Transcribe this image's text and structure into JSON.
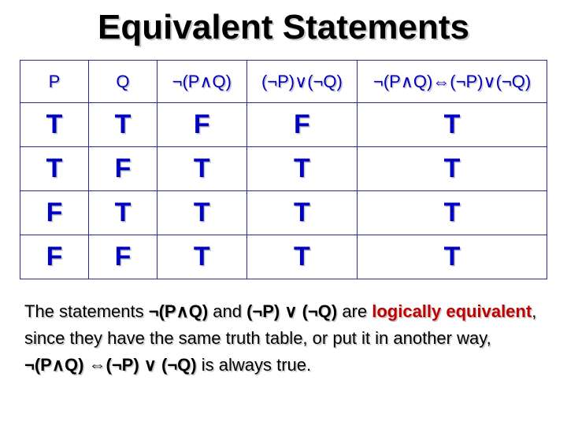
{
  "title": "Equivalent Statements",
  "columns": [
    "P",
    "Q",
    "¬(P∧Q)",
    "(¬P)∨(¬Q)",
    "¬(P∧Q)⇔(¬P)∨(¬Q)"
  ],
  "rows": [
    [
      "T",
      "T",
      "F",
      "F",
      "T"
    ],
    [
      "T",
      "F",
      "T",
      "T",
      "T"
    ],
    [
      "F",
      "T",
      "T",
      "T",
      "T"
    ],
    [
      "F",
      "F",
      "T",
      "T",
      "T"
    ]
  ],
  "explain": {
    "t1": "The statements ",
    "e1": "¬(P∧Q)",
    "t2": " and ",
    "e2": "(¬P) ∨ (¬Q)",
    "t3": " are ",
    "le": "logically equivalent",
    "t4": ", since they have the same truth table, or put it in another way, ",
    "e3": "¬(P∧Q) ⇔(¬P) ∨ (¬Q)",
    "t5": " is always true."
  },
  "colors": {
    "header_text": "#0000c0",
    "cell_text": "#0000c0",
    "border": "#2a2a9a",
    "shadow": "#c8c8c8",
    "accent": "#c00000",
    "background": "#ffffff"
  },
  "fonts": {
    "title_size": 44,
    "header_size": 22,
    "cell_size": 34,
    "explain_size": 22
  },
  "layout": {
    "col_widths_pct": [
      13,
      13,
      17,
      21,
      36
    ]
  }
}
